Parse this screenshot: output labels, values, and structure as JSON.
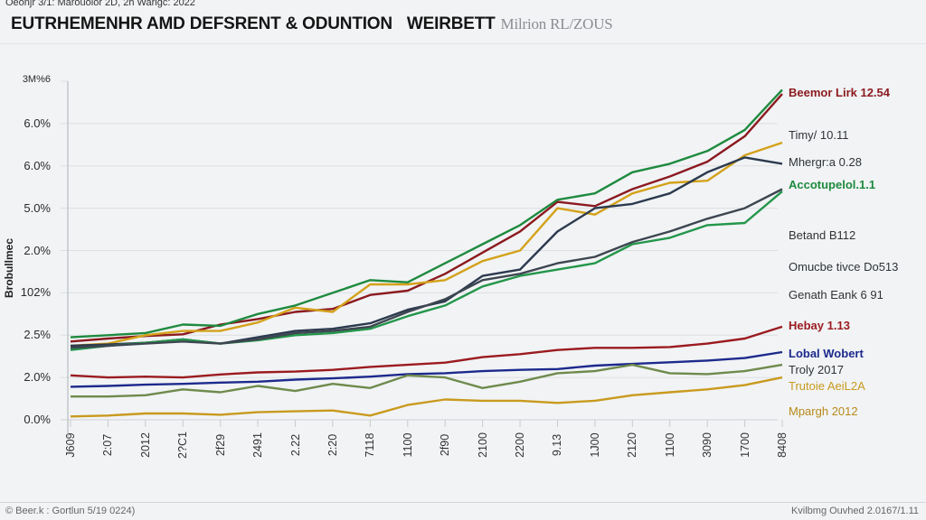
{
  "header": {
    "top_note": "Oeonjr 3/1: Marouolor 2D, 2h Warigc: 2022",
    "title": "EUTRHEMENHR AMD DEFSRENT & ODUNTION",
    "title_bold_suffix": "WEIRBETT",
    "title_unit": "Milrion RL/ZOUS"
  },
  "footer": {
    "source_left": "© Beer.k : Gortlun 5/19 0224)",
    "source_right": "Kvilbmg Ouvhed 2.0167/1.11"
  },
  "chart_data": {
    "type": "line",
    "title": "EUTRHEMENHR AMD DEFSRENT & ODUNTION WEIRBETT",
    "subtitle": "Milrion RL/ZOUS",
    "xlabel": "",
    "ylabel": "Brobullmec",
    "grid": true,
    "legend_placement": "right (inline end labels)",
    "x": [
      "J609",
      "2:07",
      "2012",
      "2?C1",
      "2f29",
      "2491",
      "2.22",
      "2:20",
      "7118",
      "1100",
      "2f90",
      "2100",
      "2200",
      "9.13",
      "1J00",
      "2120",
      "1100",
      "3090",
      "1700",
      "8408"
    ],
    "y_tick_labels": [
      "0.0%",
      "2.0%",
      "2.5%",
      "102%",
      "2.0%",
      "5.0%",
      "6.0%",
      "6.0%",
      "3M%6"
    ],
    "y_scale_note": "values expressed in tick-index units: 0 = '0.0%' (bottom gridline), 8 = '3M%6' (top)",
    "ylim": [
      0,
      8
    ],
    "series": [
      {
        "name": "Beemor Lirk 12.54",
        "color": "#8b1a1f",
        "bold": true,
        "values": [
          1.85,
          1.92,
          1.98,
          2.02,
          2.25,
          2.38,
          2.55,
          2.62,
          2.95,
          3.05,
          3.45,
          3.95,
          4.45,
          5.15,
          5.05,
          5.45,
          5.75,
          6.1,
          6.7,
          7.7
        ]
      },
      {
        "name": "Timy/ 10.11",
        "color": "#d4a21a",
        "bold": false,
        "values": [
          1.75,
          1.8,
          2.0,
          2.1,
          2.1,
          2.3,
          2.65,
          2.55,
          3.2,
          3.2,
          3.3,
          3.75,
          4.0,
          5.0,
          4.85,
          5.35,
          5.6,
          5.65,
          6.25,
          6.55
        ]
      },
      {
        "name": "Mhergr:a 0.28",
        "color": "#2c3a4e",
        "bold": false,
        "values": [
          1.75,
          1.78,
          1.82,
          1.9,
          1.8,
          1.95,
          2.1,
          2.15,
          2.28,
          2.6,
          2.8,
          3.4,
          3.55,
          4.45,
          5.0,
          5.1,
          5.35,
          5.85,
          6.2,
          6.05
        ]
      },
      {
        "name": "Accotupelol.1.1",
        "color": "#1e8a3e",
        "bold": true,
        "values": [
          1.95,
          2.0,
          2.05,
          2.25,
          2.22,
          2.5,
          2.7,
          3.0,
          3.3,
          3.25,
          3.7,
          4.15,
          4.6,
          5.2,
          5.35,
          5.85,
          6.05,
          6.35,
          6.85,
          7.8
        ]
      },
      {
        "name": "Betand B112",
        "color": "#23964a",
        "bold": false,
        "values": [
          1.65,
          1.75,
          1.82,
          1.9,
          1.8,
          1.88,
          2.0,
          2.05,
          2.15,
          2.45,
          2.7,
          3.15,
          3.4,
          3.55,
          3.7,
          4.15,
          4.3,
          4.6,
          4.65,
          5.4
        ]
      },
      {
        "name": "Omucbe tivce Do513",
        "color": "#3d4650",
        "bold": false,
        "values": [
          1.7,
          1.75,
          1.8,
          1.85,
          1.8,
          1.9,
          2.05,
          2.1,
          2.2,
          2.55,
          2.85,
          3.3,
          3.45,
          3.7,
          3.85,
          4.2,
          4.45,
          4.75,
          5.0,
          5.45
        ]
      },
      {
        "name": "Hebay 1.13",
        "color": "#9b1b1f",
        "bold": true,
        "values": [
          1.05,
          1.0,
          1.02,
          1.0,
          1.07,
          1.12,
          1.14,
          1.18,
          1.25,
          1.3,
          1.35,
          1.48,
          1.55,
          1.65,
          1.7,
          1.7,
          1.72,
          1.8,
          1.92,
          2.2
        ]
      },
      {
        "name": "Lobal Wobert",
        "color": "#1c2a8c",
        "bold": true,
        "values": [
          0.78,
          0.8,
          0.83,
          0.85,
          0.88,
          0.9,
          0.95,
          0.98,
          1.02,
          1.08,
          1.1,
          1.15,
          1.18,
          1.2,
          1.28,
          1.32,
          1.36,
          1.4,
          1.46,
          1.6
        ]
      },
      {
        "name": "Troly 2017",
        "color": "#6f8a4c",
        "bold": false,
        "values": [
          0.55,
          0.55,
          0.58,
          0.72,
          0.65,
          0.8,
          0.68,
          0.85,
          0.75,
          1.05,
          1.0,
          0.75,
          0.9,
          1.1,
          1.15,
          1.3,
          1.1,
          1.08,
          1.15,
          1.3
        ]
      },
      {
        "name": "Trutoie AeiL2A",
        "color": "#c99a1e",
        "bold": false,
        "values": [
          0.08,
          0.1,
          0.15,
          0.15,
          0.12,
          0.18,
          0.2,
          0.22,
          0.1,
          0.35,
          0.48,
          0.45,
          0.45,
          0.4,
          0.45,
          0.58,
          0.65,
          0.72,
          0.82,
          1.0
        ]
      },
      {
        "name": "Mpargh 2012",
        "color": "#b88a18",
        "bold": false,
        "values": []
      }
    ]
  }
}
